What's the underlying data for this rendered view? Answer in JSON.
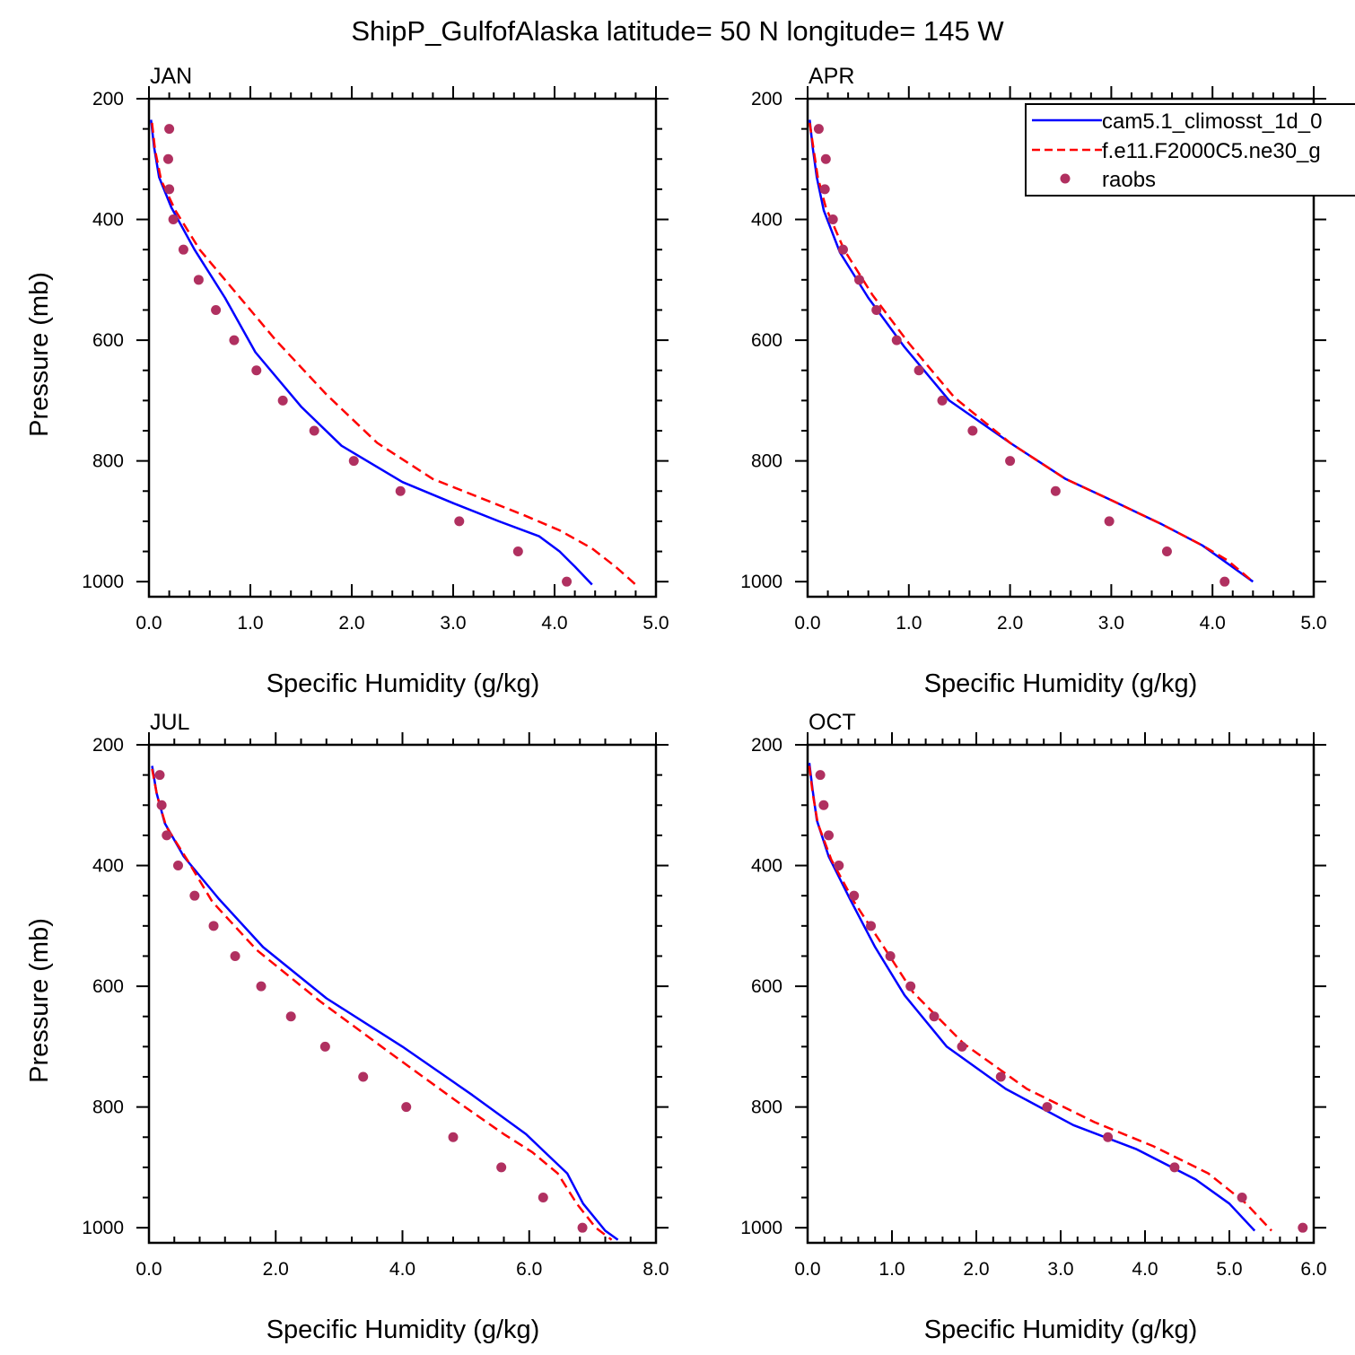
{
  "title": "ShipP_GulfofAlaska  latitude= 50 N longitude= 145 W",
  "legend": {
    "entries": [
      {
        "label": "cam5.1_climosst_1d_0",
        "color": "#0000ff",
        "style": "solid"
      },
      {
        "label": "f.e11.F2000C5.ne30_g",
        "color": "#ff0000",
        "style": "dashed"
      },
      {
        "label": "raobs",
        "color": "#b03060",
        "style": "marker"
      }
    ]
  },
  "chart_data": [
    {
      "type": "line",
      "panel": "JAN",
      "title": "JAN",
      "xlabel": "Specific Humidity (g/kg)",
      "ylabel": "Pressure (mb)",
      "xlim": [
        0,
        5
      ],
      "ylim": [
        1025,
        200
      ],
      "xticks": [
        0,
        1,
        2,
        3,
        4,
        5
      ],
      "xtick_labels": [
        "0.0",
        "1.0",
        "2.0",
        "3.0",
        "4.0",
        "5.0"
      ],
      "yticks": [
        200,
        400,
        600,
        800,
        1000
      ],
      "ytick_labels": [
        "200",
        "400",
        "600",
        "800",
        "1000"
      ],
      "series": [
        {
          "name": "cam5.1_climosst_1d_0",
          "color": "#0000ff",
          "style": "solid",
          "x": [
            0.02,
            0.05,
            0.1,
            0.22,
            0.45,
            0.75,
            1.05,
            1.5,
            1.9,
            2.5,
            3.0,
            3.45,
            3.85,
            4.05,
            4.2,
            4.37
          ],
          "y": [
            235,
            280,
            330,
            380,
            450,
            530,
            620,
            710,
            775,
            835,
            870,
            900,
            925,
            950,
            975,
            1005
          ]
        },
        {
          "name": "f.e11.F2000C5.ne30_g",
          "color": "#ff0000",
          "style": "dashed",
          "x": [
            0.03,
            0.06,
            0.12,
            0.26,
            0.5,
            0.85,
            1.25,
            1.75,
            2.25,
            2.8,
            3.25,
            3.7,
            4.05,
            4.37,
            4.6,
            4.8
          ],
          "y": [
            240,
            285,
            335,
            385,
            450,
            520,
            600,
            690,
            770,
            830,
            860,
            890,
            915,
            945,
            975,
            1005
          ]
        },
        {
          "name": "raobs",
          "color": "#b03060",
          "style": "marker",
          "x": [
            0.2,
            0.19,
            0.2,
            0.24,
            0.34,
            0.49,
            0.66,
            0.84,
            1.06,
            1.32,
            1.63,
            2.02,
            2.48,
            3.06,
            3.64,
            4.12
          ],
          "y": [
            250,
            300,
            350,
            400,
            450,
            500,
            550,
            600,
            650,
            700,
            750,
            800,
            850,
            900,
            950,
            1000
          ]
        }
      ]
    },
    {
      "type": "line",
      "panel": "APR",
      "title": "APR",
      "xlabel": "Specific Humidity (g/kg)",
      "ylabel": "",
      "xlim": [
        0,
        5
      ],
      "ylim": [
        1025,
        200
      ],
      "xticks": [
        0,
        1,
        2,
        3,
        4,
        5
      ],
      "xtick_labels": [
        "0.0",
        "1.0",
        "2.0",
        "3.0",
        "4.0",
        "5.0"
      ],
      "yticks": [
        200,
        400,
        600,
        800,
        1000
      ],
      "ytick_labels": [
        "200",
        "400",
        "600",
        "800",
        "1000"
      ],
      "series": [
        {
          "name": "cam5.1_climosst_1d_0",
          "color": "#0000ff",
          "style": "solid",
          "x": [
            0.02,
            0.05,
            0.09,
            0.16,
            0.32,
            0.6,
            0.95,
            1.4,
            2.0,
            2.55,
            3.0,
            3.5,
            3.9,
            4.15,
            4.4
          ],
          "y": [
            235,
            280,
            330,
            385,
            455,
            530,
            610,
            700,
            770,
            830,
            865,
            905,
            940,
            970,
            1000
          ]
        },
        {
          "name": "f.e11.F2000C5.ne30_g",
          "color": "#ff0000",
          "style": "dashed",
          "x": [
            0.02,
            0.06,
            0.1,
            0.18,
            0.36,
            0.64,
            1.0,
            1.45,
            2.0,
            2.55,
            3.0,
            3.5,
            3.9,
            4.15,
            4.4
          ],
          "y": [
            240,
            285,
            330,
            380,
            450,
            525,
            605,
            695,
            770,
            830,
            865,
            905,
            940,
            965,
            1000
          ]
        },
        {
          "name": "raobs",
          "color": "#b03060",
          "style": "marker",
          "x": [
            0.11,
            0.18,
            0.17,
            0.25,
            0.35,
            0.51,
            0.68,
            0.88,
            1.1,
            1.33,
            1.63,
            2.0,
            2.45,
            2.98,
            3.55,
            4.12
          ],
          "y": [
            250,
            300,
            350,
            400,
            450,
            500,
            550,
            600,
            650,
            700,
            750,
            800,
            850,
            900,
            950,
            1000
          ]
        }
      ]
    },
    {
      "type": "line",
      "panel": "JUL",
      "title": "JUL",
      "xlabel": "Specific Humidity (g/kg)",
      "ylabel": "Pressure (mb)",
      "xlim": [
        0,
        8
      ],
      "ylim": [
        1025,
        200
      ],
      "xticks": [
        0,
        2,
        4,
        6,
        8
      ],
      "xtick_labels": [
        "0.0",
        "2.0",
        "4.0",
        "6.0",
        "8.0"
      ],
      "yticks": [
        200,
        400,
        600,
        800,
        1000
      ],
      "ytick_labels": [
        "200",
        "400",
        "600",
        "800",
        "1000"
      ],
      "series": [
        {
          "name": "cam5.1_climosst_1d_0",
          "color": "#0000ff",
          "style": "solid",
          "x": [
            0.05,
            0.12,
            0.25,
            0.55,
            1.1,
            1.8,
            2.8,
            4.0,
            5.1,
            5.95,
            6.3,
            6.6,
            6.85,
            7.2,
            7.4
          ],
          "y": [
            235,
            280,
            330,
            385,
            455,
            535,
            620,
            700,
            780,
            845,
            880,
            910,
            960,
            1005,
            1020
          ]
        },
        {
          "name": "f.e11.F2000C5.ne30_g",
          "color": "#ff0000",
          "style": "dashed",
          "x": [
            0.05,
            0.13,
            0.27,
            0.6,
            1.0,
            1.7,
            2.7,
            3.8,
            4.85,
            5.6,
            6.05,
            6.45,
            6.75,
            7.05,
            7.3
          ],
          "y": [
            240,
            285,
            335,
            390,
            460,
            540,
            625,
            710,
            790,
            845,
            875,
            910,
            960,
            1000,
            1020
          ]
        },
        {
          "name": "raobs",
          "color": "#b03060",
          "style": "marker",
          "x": [
            0.17,
            0.2,
            0.28,
            0.46,
            0.72,
            1.02,
            1.36,
            1.77,
            2.24,
            2.78,
            3.38,
            4.06,
            4.8,
            5.56,
            6.22,
            6.84
          ],
          "y": [
            250,
            300,
            350,
            400,
            450,
            500,
            550,
            600,
            650,
            700,
            750,
            800,
            850,
            900,
            950,
            1000
          ]
        }
      ]
    },
    {
      "type": "line",
      "panel": "OCT",
      "title": "OCT",
      "xlabel": "Specific Humidity (g/kg)",
      "ylabel": "",
      "xlim": [
        0,
        6
      ],
      "ylim": [
        1025,
        200
      ],
      "xticks": [
        0,
        1,
        2,
        3,
        4,
        5,
        6
      ],
      "xtick_labels": [
        "0.0",
        "1.0",
        "2.0",
        "3.0",
        "4.0",
        "5.0",
        "6.0"
      ],
      "yticks": [
        200,
        400,
        600,
        800,
        1000
      ],
      "ytick_labels": [
        "200",
        "400",
        "600",
        "800",
        "1000"
      ],
      "series": [
        {
          "name": "cam5.1_climosst_1d_0",
          "color": "#0000ff",
          "style": "solid",
          "x": [
            0.02,
            0.06,
            0.11,
            0.25,
            0.5,
            0.8,
            1.15,
            1.65,
            2.35,
            3.15,
            3.9,
            4.6,
            5.0,
            5.3
          ],
          "y": [
            230,
            275,
            325,
            385,
            455,
            535,
            615,
            700,
            770,
            830,
            870,
            920,
            960,
            1005
          ]
        },
        {
          "name": "f.e11.F2000C5.ne30_g",
          "color": "#ff0000",
          "style": "dashed",
          "x": [
            0.02,
            0.06,
            0.12,
            0.28,
            0.55,
            0.88,
            1.25,
            1.85,
            2.6,
            3.4,
            4.1,
            4.75,
            5.2,
            5.5
          ],
          "y": [
            235,
            280,
            330,
            390,
            460,
            530,
            610,
            695,
            770,
            825,
            865,
            910,
            960,
            1005
          ]
        },
        {
          "name": "raobs",
          "color": "#b03060",
          "style": "marker",
          "x": [
            0.15,
            0.19,
            0.25,
            0.37,
            0.55,
            0.75,
            0.98,
            1.22,
            1.5,
            1.83,
            2.29,
            2.84,
            3.56,
            4.35,
            5.15,
            5.87
          ],
          "y": [
            250,
            300,
            350,
            400,
            450,
            500,
            550,
            600,
            650,
            700,
            750,
            800,
            850,
            900,
            950,
            1000
          ]
        }
      ]
    }
  ]
}
